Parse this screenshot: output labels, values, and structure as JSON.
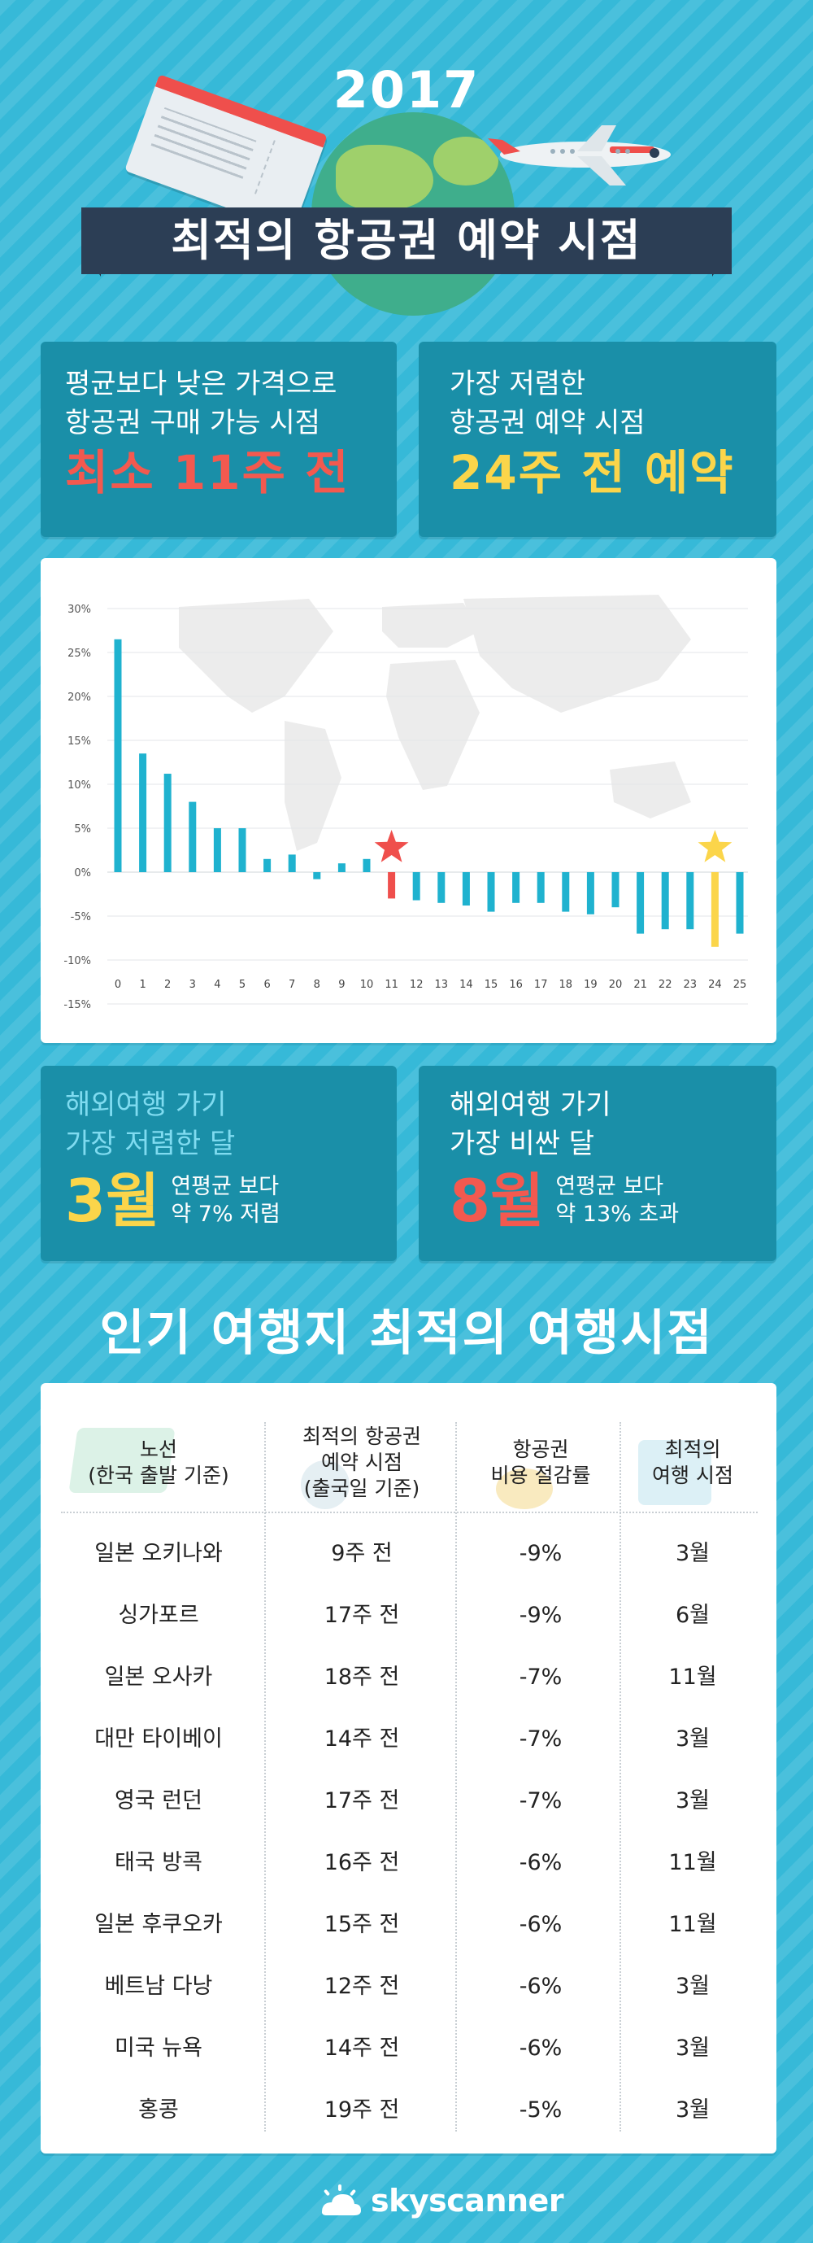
{
  "header": {
    "year": "2017",
    "title": "최적의 항공권 예약 시점"
  },
  "stats": {
    "cheaper_than_avg": {
      "line1": "평균보다 낮은 가격으로",
      "line2": "항공권 구매 가능 시점",
      "value": "최소 11주 전"
    },
    "cheapest_booking": {
      "line1": "가장 저렴한",
      "line2": "항공권 예약 시점",
      "value": "24주 전 예약"
    },
    "cheapest_month": {
      "line1": "해외여행 가기",
      "line2": "가장 저렴한 달",
      "month": "3월",
      "desc1": "연평균 보다",
      "desc2": "약 7% 저렴"
    },
    "expensive_month": {
      "line1": "해외여행 가기",
      "line2": "가장 비싼 달",
      "month": "8월",
      "desc1": "연평균 보다",
      "desc2": "약 13% 초과"
    }
  },
  "chart_data": {
    "type": "bar",
    "categories": [
      "0",
      "1",
      "2",
      "3",
      "4",
      "5",
      "6",
      "7",
      "8",
      "9",
      "10",
      "11",
      "12",
      "13",
      "14",
      "15",
      "16",
      "17",
      "18",
      "19",
      "20",
      "21",
      "22",
      "23",
      "24",
      "25"
    ],
    "values": [
      26.5,
      13.5,
      11.2,
      8,
      5,
      5,
      1.5,
      2,
      -0.8,
      1,
      1.5,
      -3,
      -3.2,
      -3.5,
      -3.8,
      -4.5,
      -3.5,
      -3.5,
      -4.5,
      -4.8,
      -4,
      -7,
      -6.5,
      -6.5,
      -8.5,
      -7
    ],
    "highlight": [
      {
        "category": "11",
        "color": "#ef4f4c",
        "marker": "star"
      },
      {
        "category": "24",
        "color": "#fbd54a",
        "marker": "star"
      }
    ],
    "bar_color": "#1fb2cf",
    "yticks": [
      "30%",
      "25%",
      "20%",
      "15%",
      "10%",
      "5%",
      "0%",
      "-5%",
      "-10%",
      "-15%"
    ],
    "ylim": [
      -15,
      30
    ],
    "grid": true
  },
  "popular": {
    "title": "인기 여행지 최적의 여행시점",
    "headers": {
      "route1": "노선",
      "route2": "(한국 출발 기준)",
      "book1": "최적의 항공권",
      "book2": "예약 시점",
      "book3": "(출국일 기준)",
      "save1": "항공권",
      "save2": "비용 절감률",
      "month1": "최적의",
      "month2": "여행 시점"
    },
    "rows": [
      {
        "route": "일본 오키나와",
        "booking": "9주 전",
        "saving": "-9%",
        "month": "3월"
      },
      {
        "route": "싱가포르",
        "booking": "17주 전",
        "saving": "-9%",
        "month": "6월"
      },
      {
        "route": "일본 오사카",
        "booking": "18주 전",
        "saving": "-7%",
        "month": "11월"
      },
      {
        "route": "대만 타이베이",
        "booking": "14주 전",
        "saving": "-7%",
        "month": "3월"
      },
      {
        "route": "영국 런던",
        "booking": "17주 전",
        "saving": "-7%",
        "month": "3월"
      },
      {
        "route": "태국 방콕",
        "booking": "16주 전",
        "saving": "-6%",
        "month": "11월"
      },
      {
        "route": "일본 후쿠오카",
        "booking": "15주 전",
        "saving": "-6%",
        "month": "11월"
      },
      {
        "route": "베트남 다낭",
        "booking": "12주 전",
        "saving": "-6%",
        "month": "3월"
      },
      {
        "route": "미국 뉴욕",
        "booking": "14주 전",
        "saving": "-6%",
        "month": "3월"
      },
      {
        "route": "홍콩",
        "booking": "19주 전",
        "saving": "-5%",
        "month": "3월"
      }
    ]
  },
  "footer": {
    "logo_text": "skyscanner",
    "logo_icon": "sun-cloud-icon"
  },
  "colors": {
    "background": "#36b9d8",
    "box": "#1a8fa8",
    "banner": "#2c3e55",
    "red": "#f3594f",
    "yellow": "#fbd54a"
  }
}
